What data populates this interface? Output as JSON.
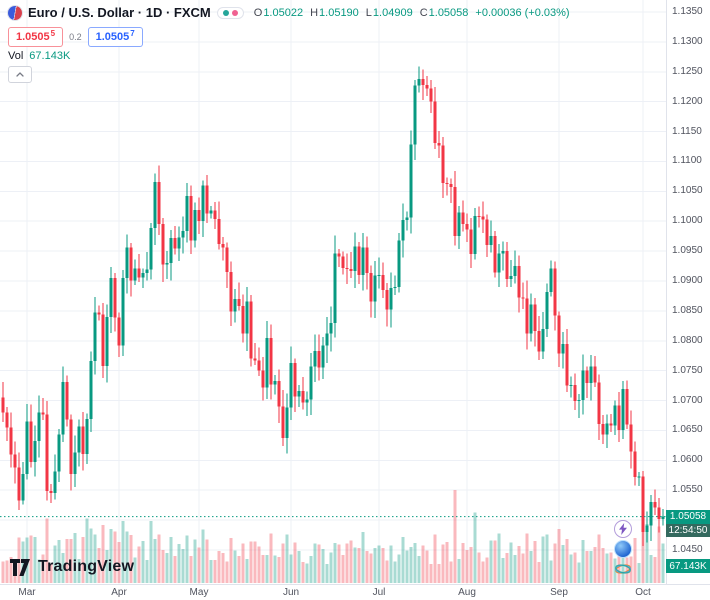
{
  "header": {
    "title": "Euro / U.S. Dollar · 1D · FXCM",
    "ohlc": {
      "o_label": "O",
      "o_value": "1.05022",
      "h_label": "H",
      "h_value": "1.05190",
      "l_label": "L",
      "l_value": "1.04909",
      "c_label": "C",
      "c_value": "1.05058",
      "change": "+0.00036 (+0.03%)"
    },
    "sell_price": "1.0505",
    "sell_sup": "5",
    "spread": "0.2",
    "buy_price": "1.0505",
    "buy_sup": "7",
    "indicator_label": "Vol",
    "indicator_value": "67.143K"
  },
  "price_scale_label": {
    "price": "1.05058",
    "countdown": "12:54:50"
  },
  "volume_scale_label": "67.143K",
  "logo_text": "TradingView",
  "floating_icons": [
    "lightning-icon",
    "blue-orb-icon",
    "layers-icon"
  ],
  "chart_data": {
    "type": "candlestick+volume-bar",
    "symbol": "Euro / U.S. Dollar",
    "timeframe": "1D",
    "exchange": "FXCM",
    "title": "EUR/USD daily candlestick chart, late Feb to early Oct",
    "price_axis": {
      "min": 1.045,
      "max": 1.135,
      "step": 0.005
    },
    "time_axis_months": [
      {
        "label": "Mar",
        "index": 6
      },
      {
        "label": "Apr",
        "index": 29
      },
      {
        "label": "May",
        "index": 49
      },
      {
        "label": "Jun",
        "index": 72
      },
      {
        "label": "Jul",
        "index": 94
      },
      {
        "label": "Aug",
        "index": 116
      },
      {
        "label": "Sep",
        "index": 139
      },
      {
        "label": "Oct",
        "index": 160
      }
    ],
    "first_open": 1.0705,
    "closes": [
      1.068,
      1.0655,
      1.061,
      1.0588,
      1.0533,
      1.0577,
      1.0665,
      1.0597,
      1.0632,
      1.068,
      1.0677,
      1.0549,
      1.0545,
      1.0581,
      1.0643,
      1.0731,
      1.0668,
      1.0577,
      1.0613,
      1.0657,
      1.0611,
      1.0669,
      1.0766,
      1.0847,
      1.0844,
      1.0758,
      1.084,
      1.0905,
      1.0839,
      1.0792,
      1.0905,
      1.0956,
      1.0901,
      1.0921,
      1.0906,
      1.0913,
      1.0919,
      1.0989,
      1.1066,
      1.0995,
      1.0928,
      1.093,
      1.0972,
      1.0954,
      1.0973,
      1.0984,
      1.1042,
      1.0968,
      1.1019,
      1.1,
      1.106,
      1.1013,
      1.1018,
      1.1004,
      1.0962,
      1.0956,
      1.0915,
      1.0849,
      1.087,
      1.0858,
      1.0812,
      1.0866,
      1.077,
      1.0767,
      1.075,
      1.0722,
      1.0805,
      1.0727,
      1.0733,
      1.069,
      1.0637,
      1.0688,
      1.0763,
      1.0707,
      1.0716,
      1.0697,
      1.0702,
      1.0757,
      1.0783,
      1.0755,
      1.0792,
      1.0812,
      1.083,
      1.0946,
      1.0941,
      1.0922,
      1.092,
      1.0917,
      1.0958,
      1.091,
      1.0956,
      1.0913,
      1.0866,
      1.0909,
      1.091,
      1.0885,
      1.0852,
      1.0888,
      1.089,
      1.0968,
      1.1002,
      1.1006,
      1.1128,
      1.1227,
      1.1238,
      1.1228,
      1.1222,
      1.12,
      1.1131,
      1.1127,
      1.1064,
      1.1062,
      1.1057,
      1.0975,
      1.1015,
      1.0995,
      1.0986,
      1.0945,
      1.1009,
      1.1008,
      1.1003,
      1.096,
      1.0975,
      1.0914,
      1.0946,
      1.095,
      1.0903,
      1.0908,
      1.0925,
      1.0872,
      1.0871,
      1.0812,
      1.0861,
      1.0816,
      1.0782,
      1.082,
      1.0882,
      1.0921,
      1.0842,
      1.0779,
      1.0795,
      1.0725,
      1.0726,
      1.0699,
      1.0701,
      1.075,
      1.0729,
      1.0757,
      1.073,
      1.0661,
      1.0643,
      1.0662,
      1.0658,
      1.0692,
      1.0651,
      1.0719,
      1.066,
      1.0615,
      1.0572,
      1.0573,
      1.048,
      1.0491,
      1.053,
      1.0521,
      1.0502,
      1.05058
    ],
    "last_bar": {
      "open": 1.05022,
      "high": 1.0519,
      "low": 1.04909,
      "close": 1.05058
    },
    "current_price": 1.05058,
    "volume": {
      "last": 67143,
      "scale_max": 170000,
      "base": 26000,
      "var": 52000,
      "spikes": {
        "21": 110000,
        "37": 105000,
        "113": 158000,
        "118": 120000,
        "160": 118000,
        "161": 100000,
        "164": 96000
      }
    },
    "colors": {
      "up": "#089981",
      "down": "#f23645",
      "vol_up": "rgba(8,153,129,0.35)",
      "vol_down": "rgba(242,54,69,0.35)",
      "grid": "#edf0f6",
      "label_bg": "#089981",
      "countdown_bg": "#33695e"
    },
    "legend_note": "grid on; price scale right; time scale bottom; current price dashed line"
  }
}
